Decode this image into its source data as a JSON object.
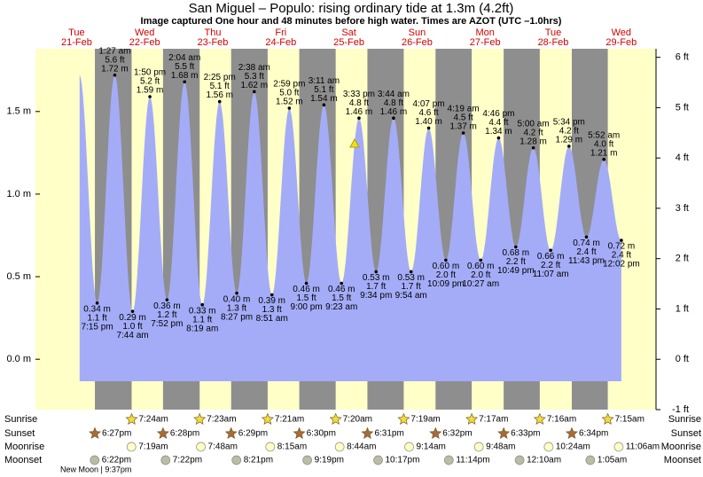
{
  "chart_data": {
    "type": "tide",
    "title": "San Miguel – Populo: rising  ordinary tide at 1.3m (4.2ft)",
    "subtitle": "Image captured One hour and 48 minutes before high water. Times are AZOT (UTC –1.0hrs)",
    "days": [
      {
        "weekday": "Tue",
        "date": "21-Feb"
      },
      {
        "weekday": "Wed",
        "date": "22-Feb"
      },
      {
        "weekday": "Thu",
        "date": "23-Feb"
      },
      {
        "weekday": "Fri",
        "date": "24-Feb"
      },
      {
        "weekday": "Sat",
        "date": "25-Feb"
      },
      {
        "weekday": "Sun",
        "date": "26-Feb"
      },
      {
        "weekday": "Mon",
        "date": "27-Feb"
      },
      {
        "weekday": "Tue",
        "date": "28-Feb"
      },
      {
        "weekday": "Wed",
        "date": "29-Feb"
      }
    ],
    "ylim": [
      -0.305,
      1.88
    ],
    "yticks": [
      {
        "value": 0,
        "label": "0.0 m"
      },
      {
        "value": 0.5,
        "label": "0.5 m"
      },
      {
        "value": 1,
        "label": "1.0 m"
      },
      {
        "value": 1.5,
        "label": "1.5 m"
      }
    ],
    "y2lim": [
      -1,
      6.17
    ],
    "y2ticks": [
      {
        "value": -1,
        "label": "-1 ft"
      },
      {
        "value": 0,
        "label": "0 ft"
      },
      {
        "value": 1,
        "label": "1 ft"
      },
      {
        "value": 2,
        "label": "2 ft"
      },
      {
        "value": 3,
        "label": "3 ft"
      },
      {
        "value": 4,
        "label": "4 ft"
      },
      {
        "value": 5,
        "label": "5 ft"
      },
      {
        "value": 6,
        "label": "6 ft"
      }
    ],
    "tides": {
      "color": "#a4acf8",
      "times": [
        "7:15 pm",
        "1:27 am",
        "7:44 am",
        "1:50 pm",
        "7:52 pm",
        "2:04 am",
        "8:19 am",
        "2:25 pm",
        "8:27 pm",
        "2:38 am",
        "8:51 am",
        "2:59 pm",
        "9:00 pm",
        "3:11 am",
        "9:23 am",
        "3:33 pm",
        "9:34 pm",
        "3:44 am",
        "9:54 am",
        "4:07 pm",
        "10:09 pm",
        "4:19 am",
        "10:27 am",
        "4:46 pm",
        "10:49 pm",
        "5:00 am",
        "11:07 am",
        "5:34 pm",
        "11:43 pm",
        "5:52 am",
        "12:02 pm"
      ],
      "values": [
        0.34,
        1.72,
        0.29,
        1.59,
        0.36,
        1.68,
        0.33,
        1.56,
        0.4,
        1.62,
        0.39,
        1.52,
        0.46,
        1.54,
        0.46,
        1.46,
        0.53,
        1.46,
        0.53,
        1.4,
        0.6,
        1.37,
        0.6,
        1.34,
        0.68,
        1.28,
        0.66,
        1.29,
        0.74,
        1.21,
        0.72
      ],
      "value_labels": [
        "0.34 m",
        "1.72 m",
        "0.29 m",
        "1.59 m",
        "0.36 m",
        "1.68 m",
        "0.33 m",
        "1.56 m",
        "0.40 m",
        "1.62 m",
        "0.39 m",
        "1.52 m",
        "0.46 m",
        "1.54 m",
        "0.46 m",
        "1.46 m",
        "0.53 m",
        "1.46 m",
        "0.53 m",
        "1.40 m",
        "0.60 m",
        "1.37 m",
        "0.60 m",
        "1.34 m",
        "0.68 m",
        "1.28 m",
        "0.66 m",
        "1.29 m",
        "0.74 m",
        "1.21 m",
        "0.72 m"
      ],
      "ft_labels": [
        "1.1 ft",
        "5.6 ft",
        "1.0 ft",
        "5.2 ft",
        "1.2 ft",
        "5.5 ft",
        "1.1 ft",
        "5.1 ft",
        "1.3 ft",
        "5.3 ft",
        "1.3 ft",
        "5.0 ft",
        "1.5 ft",
        "5.1 ft",
        "1.5 ft",
        "4.8 ft",
        "1.7 ft",
        "4.8 ft",
        "1.7 ft",
        "4.6 ft",
        "2.0 ft",
        "4.5 ft",
        "2.0 ft",
        "4.4 ft",
        "2.2 ft",
        "4.2 ft",
        "2.2 ft",
        "4.2 ft",
        "2.4 ft",
        "4.0 ft",
        "2.4 ft"
      ]
    },
    "almanac": [
      {
        "name": "Sunrise",
        "times": [
          null,
          "7:24am",
          "7:23am",
          "7:21am",
          "7:20am",
          "7:19am",
          "7:17am",
          "7:16am",
          "7:15am"
        ]
      },
      {
        "name": "Sunset",
        "times": [
          "6:27pm",
          "6:28pm",
          "6:29pm",
          "6:30pm",
          "6:31pm",
          "6:32pm",
          "6:33pm",
          "6:34pm",
          null
        ]
      },
      {
        "name": "Moonrise",
        "times": [
          null,
          "7:19am",
          "7:48am",
          "8:15am",
          "8:44am",
          "9:14am",
          "9:48am",
          "10:24am",
          "11:06am"
        ]
      },
      {
        "name": "Moonset",
        "times": [
          "6:22pm",
          "7:22pm",
          "8:21pm",
          "9:19pm",
          "10:17pm",
          "11:14pm",
          null,
          "12:10am",
          "1:05am"
        ]
      }
    ],
    "moon_phase": "New Moon | 9:37pm"
  }
}
